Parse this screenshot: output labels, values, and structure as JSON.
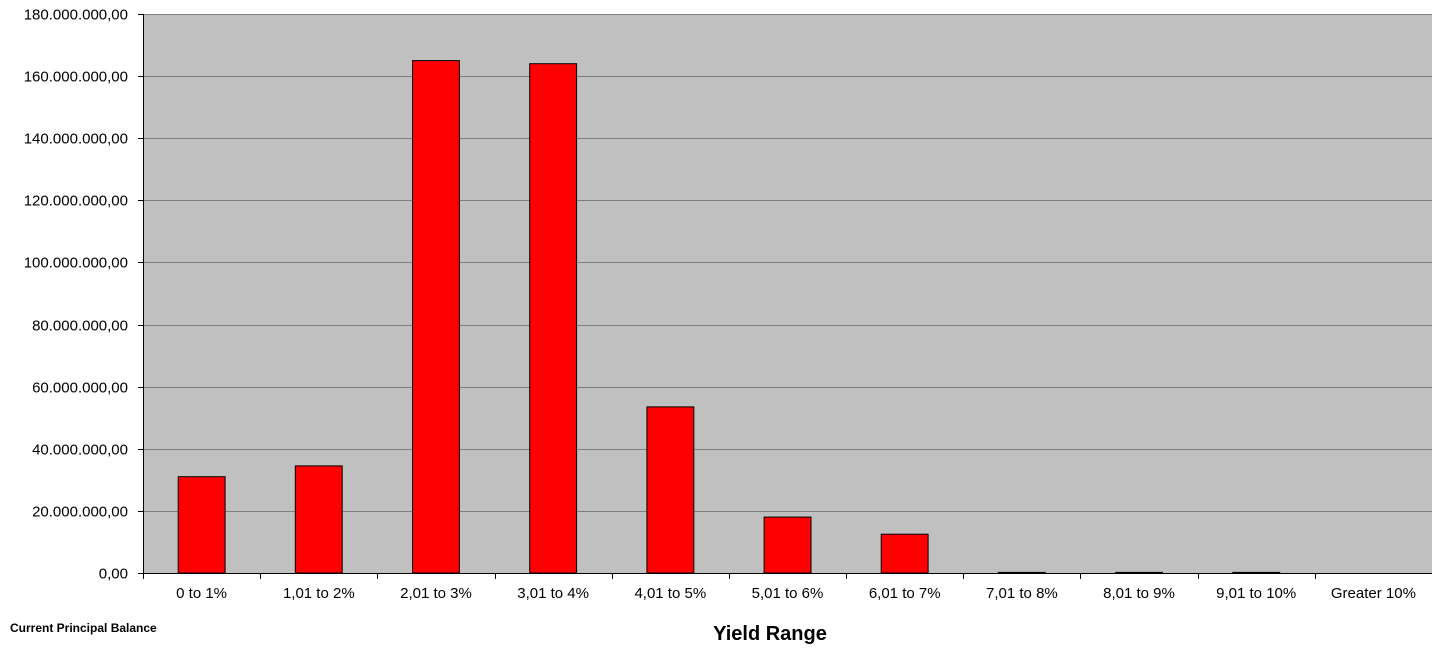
{
  "chart_data": {
    "type": "bar",
    "title": "",
    "xlabel": "Yield Range",
    "ylabel": "Current Principal  Balance",
    "categories": [
      "0 to 1%",
      "1,01 to 2%",
      "2,01 to 3%",
      "3,01 to 4%",
      "4,01 to 5%",
      "5,01 to 6%",
      "6,01 to 7%",
      "7,01 to 8%",
      "8,01 to 9%",
      "9,01 to 10%",
      "Greater 10%"
    ],
    "values": [
      31000000,
      34500000,
      165000000,
      164000000,
      53500000,
      18000000,
      12500000,
      200000,
      200000,
      200000,
      0
    ],
    "ylim": [
      0,
      180000000
    ],
    "yticks": [
      0,
      20000000,
      40000000,
      60000000,
      80000000,
      100000000,
      120000000,
      140000000,
      160000000,
      180000000
    ],
    "ytick_labels": [
      "0,00",
      "20.000.000,00",
      "40.000.000,00",
      "60.000.000,00",
      "80.000.000,00",
      "100.000.000,00",
      "120.000.000,00",
      "140.000.000,00",
      "160.000.000,00",
      "180.000.000,00"
    ],
    "grid": true,
    "legend": "none",
    "colors": {
      "bar_fill": "#FF0000",
      "bar_stroke": "#000000",
      "plot_background": "#C0C0C0",
      "gridline": "#808080"
    }
  }
}
